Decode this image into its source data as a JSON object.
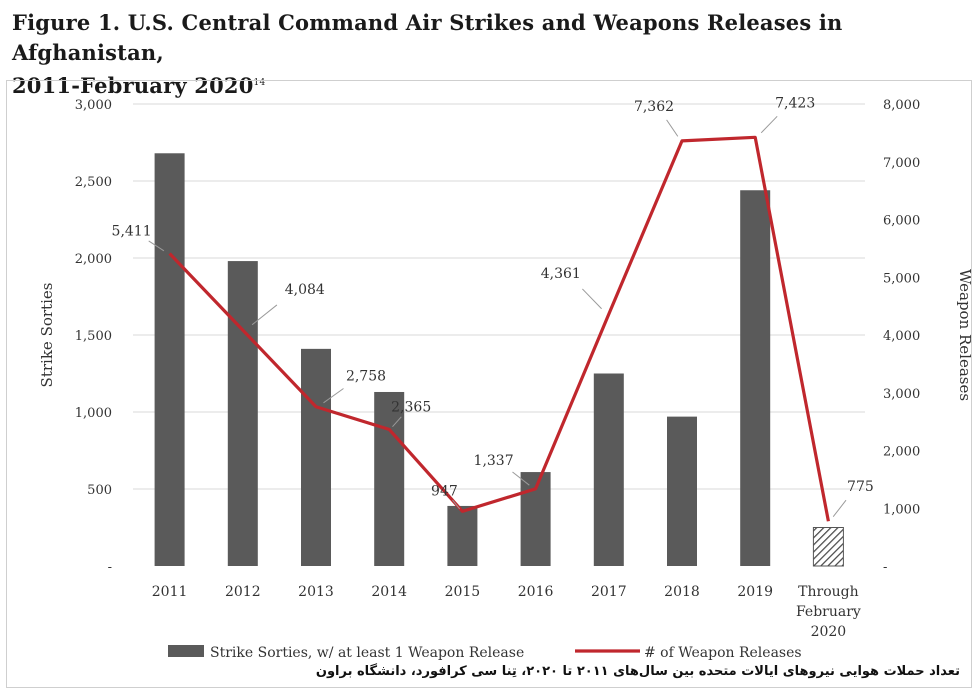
{
  "figure": {
    "title_line1": "Figure 1. U.S. Central Command Air Strikes and Weapons Releases in Afghanistan,",
    "title_line2": "2011-February 2020",
    "title_sup": "14"
  },
  "caption": "تعداد حملات هوایی نیروهای ایالات متحده بین سال‌های ۲۰۱۱ تا ۲۰۲۰، تِنا سی کرافورد، دانشگاه براون",
  "chart_data": {
    "type": "bar",
    "categories": [
      "2011",
      "2012",
      "2013",
      "2014",
      "2015",
      "2016",
      "2017",
      "2018",
      "2019",
      "Through February 2020"
    ],
    "category_lines": [
      [
        "2011"
      ],
      [
        "2012"
      ],
      [
        "2013"
      ],
      [
        "2014"
      ],
      [
        "2015"
      ],
      [
        "2016"
      ],
      [
        "2017"
      ],
      [
        "2018"
      ],
      [
        "2019"
      ],
      [
        "Through",
        "February",
        "2020"
      ]
    ],
    "series": [
      {
        "name": "Strike Sorties, w/ at least 1 Weapon Release",
        "type": "bar",
        "axis": "left",
        "color": "#5a5a5a",
        "values": [
          2680,
          1980,
          1410,
          1130,
          390,
          610,
          1250,
          970,
          2440,
          250
        ],
        "hatched_last": true
      },
      {
        "name": "# of Weapon Releases",
        "type": "line",
        "axis": "right",
        "color": "#c0272d",
        "values": [
          5411,
          4084,
          2758,
          2365,
          947,
          1337,
          4361,
          7362,
          7423,
          775
        ],
        "labels": [
          "5,411",
          "4,084",
          "2,758",
          "2,365",
          "947",
          "1,337",
          "4,361",
          "7,362",
          "7,423",
          "775"
        ]
      }
    ],
    "ylabel": "Strike Sorties",
    "y2label": "Weapon Releases",
    "ylim": [
      0,
      3000
    ],
    "y2lim": [
      0,
      8000
    ],
    "yticks": [
      "-",
      "500",
      "1,000",
      "1,500",
      "2,000",
      "2,500",
      "3,000"
    ],
    "y2ticks": [
      "-",
      "1,000",
      "2,000",
      "3,000",
      "4,000",
      "5,000",
      "6,000",
      "7,000",
      "8,000"
    ],
    "grid": true,
    "legend_position": "bottom"
  }
}
